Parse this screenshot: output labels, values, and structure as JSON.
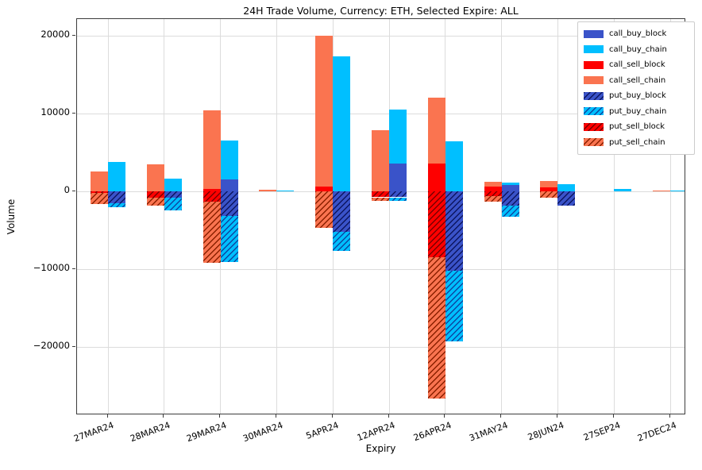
{
  "chart_data": {
    "type": "bar",
    "title": "24H Trade Volume, Currency: ETH, Selected Expire: ALL",
    "xlabel": "Expiry",
    "ylabel": "Volume",
    "categories": [
      "27MAR24",
      "28MAR24",
      "29MAR24",
      "30MAR24",
      "5APR24",
      "12APR24",
      "26APR24",
      "31MAY24",
      "28JUN24",
      "27SEP24",
      "27DEC24"
    ],
    "series": [
      {
        "name": "call_buy_block",
        "bar": "buy",
        "stack": "pos",
        "color": "#3A53C9",
        "hatch": false,
        "hatch_color": null,
        "values": [
          0,
          0,
          1550,
          0,
          0,
          3600,
          0,
          800,
          0,
          0,
          0
        ]
      },
      {
        "name": "call_buy_chain",
        "bar": "buy",
        "stack": "pos",
        "color": "#00BFFF",
        "hatch": false,
        "hatch_color": null,
        "values": [
          3750,
          1600,
          4950,
          150,
          17350,
          6900,
          6450,
          300,
          900,
          300,
          100
        ]
      },
      {
        "name": "call_sell_block",
        "bar": "sell",
        "stack": "pos",
        "color": "#FE0000",
        "hatch": false,
        "hatch_color": null,
        "values": [
          0,
          0,
          350,
          0,
          600,
          0,
          3600,
          600,
          550,
          0,
          0
        ]
      },
      {
        "name": "call_sell_chain",
        "bar": "sell",
        "stack": "pos",
        "color": "#FA7450",
        "hatch": false,
        "hatch_color": null,
        "values": [
          2600,
          3450,
          10050,
          200,
          19400,
          7900,
          8450,
          600,
          800,
          0,
          150
        ]
      },
      {
        "name": "put_buy_block",
        "bar": "buy",
        "stack": "neg",
        "color": "#3A53C9",
        "hatch": true,
        "hatch_color": "#0D1660",
        "values": [
          -1500,
          -850,
          -3150,
          0,
          -5200,
          -750,
          -10150,
          -1850,
          -1800,
          0,
          0
        ]
      },
      {
        "name": "put_buy_chain",
        "bar": "buy",
        "stack": "neg",
        "color": "#00BFFF",
        "hatch": true,
        "hatch_color": "#0D47A1",
        "values": [
          -550,
          -1550,
          -5900,
          0,
          -2450,
          -450,
          -9100,
          -1450,
          0,
          0,
          0
        ]
      },
      {
        "name": "put_sell_block",
        "bar": "sell",
        "stack": "neg",
        "color": "#FE0000",
        "hatch": true,
        "hatch_color": "#7A0000",
        "values": [
          -150,
          -800,
          -1350,
          0,
          0,
          -750,
          -8500,
          -600,
          0,
          0,
          0
        ]
      },
      {
        "name": "put_sell_chain",
        "bar": "sell",
        "stack": "neg",
        "color": "#FA7450",
        "hatch": true,
        "hatch_color": "#8B2000",
        "values": [
          -1450,
          -1050,
          -7800,
          0,
          -4650,
          -450,
          -18100,
          -700,
          -850,
          0,
          0
        ]
      }
    ],
    "y_ticks": [
      20000,
      10000,
      0,
      -10000,
      -20000
    ],
    "ylim": [
      -28750,
      22150
    ],
    "grid": true,
    "legend_position": "upper right"
  },
  "colors": {
    "grid": "#dcdcdc",
    "spine": "#3c3c3c",
    "background": "#ffffff",
    "text": "#000000"
  }
}
